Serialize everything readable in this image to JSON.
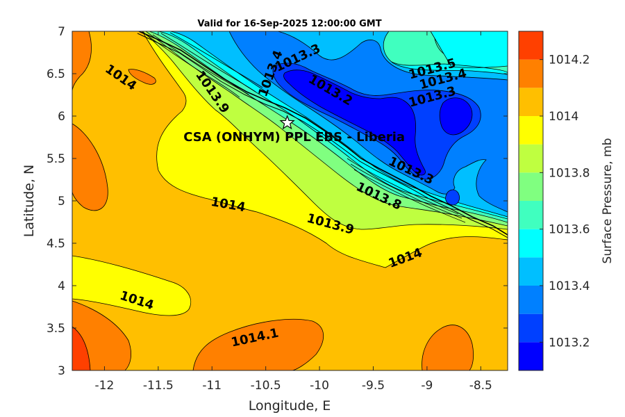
{
  "chart_data": {
    "type": "heatmap",
    "title": "Valid for 16-Sep-2025 12:00:00 GMT",
    "xlabel": "Longitude, E",
    "ylabel": "Latitude, N",
    "xlim": [
      -12.3,
      -8.25
    ],
    "ylim": [
      3,
      7
    ],
    "xticks": [
      -12,
      -11.5,
      -11,
      -10.5,
      -10,
      -9.5,
      -9,
      -8.5
    ],
    "yticks": [
      3,
      3.5,
      4,
      4.5,
      5,
      5.5,
      6,
      6.5,
      7
    ],
    "colorbar": {
      "label": "Surface Pressure, mb",
      "range": [
        1013.1,
        1014.3
      ],
      "ticks": [
        1013.2,
        1013.4,
        1013.6,
        1013.8,
        1014,
        1014.2
      ],
      "levels": [
        1013.1,
        1013.2,
        1013.3,
        1013.4,
        1013.5,
        1013.6,
        1013.7,
        1013.8,
        1013.9,
        1014.0,
        1014.1,
        1014.2,
        1014.3
      ],
      "colors": [
        "#0000ff",
        "#0040ff",
        "#0080ff",
        "#00bfff",
        "#00ffff",
        "#40ffbf",
        "#80ff80",
        "#bfff40",
        "#ffff00",
        "#ffbf00",
        "#ff8000",
        "#ff4000"
      ]
    },
    "site": {
      "name": "CSA (ONHYM) PPL EBS  - Liberia",
      "lon": -10.3,
      "lat": 5.92
    },
    "contour_labels": [
      {
        "text": "1014",
        "lon": -11.85,
        "lat": 6.45,
        "angle": 35
      },
      {
        "text": "1013.9",
        "lon": -11.0,
        "lat": 6.28,
        "angle": 55
      },
      {
        "text": "1013.4",
        "lon": -10.45,
        "lat": 6.5,
        "angle": -70
      },
      {
        "text": "1013.3",
        "lon": -10.2,
        "lat": 6.68,
        "angle": -25
      },
      {
        "text": "1013.2",
        "lon": -9.9,
        "lat": 6.3,
        "angle": 30
      },
      {
        "text": "1013.5",
        "lon": -8.95,
        "lat": 6.55,
        "angle": -15
      },
      {
        "text": "1013.4",
        "lon": -8.85,
        "lat": 6.43,
        "angle": -15
      },
      {
        "text": "1013.3",
        "lon": -8.95,
        "lat": 6.22,
        "angle": -15
      },
      {
        "text": "1013.3",
        "lon": -9.15,
        "lat": 5.35,
        "angle": 25
      },
      {
        "text": "1013.8",
        "lon": -9.45,
        "lat": 5.05,
        "angle": 25
      },
      {
        "text": "1014",
        "lon": -10.85,
        "lat": 4.95,
        "angle": 10
      },
      {
        "text": "1013.9",
        "lon": -9.9,
        "lat": 4.72,
        "angle": 15
      },
      {
        "text": "1014",
        "lon": -9.2,
        "lat": 4.32,
        "angle": -20
      },
      {
        "text": "1014",
        "lon": -11.7,
        "lat": 3.82,
        "angle": 18
      },
      {
        "text": "1014.1",
        "lon": -10.6,
        "lat": 3.38,
        "angle": -12
      }
    ]
  }
}
